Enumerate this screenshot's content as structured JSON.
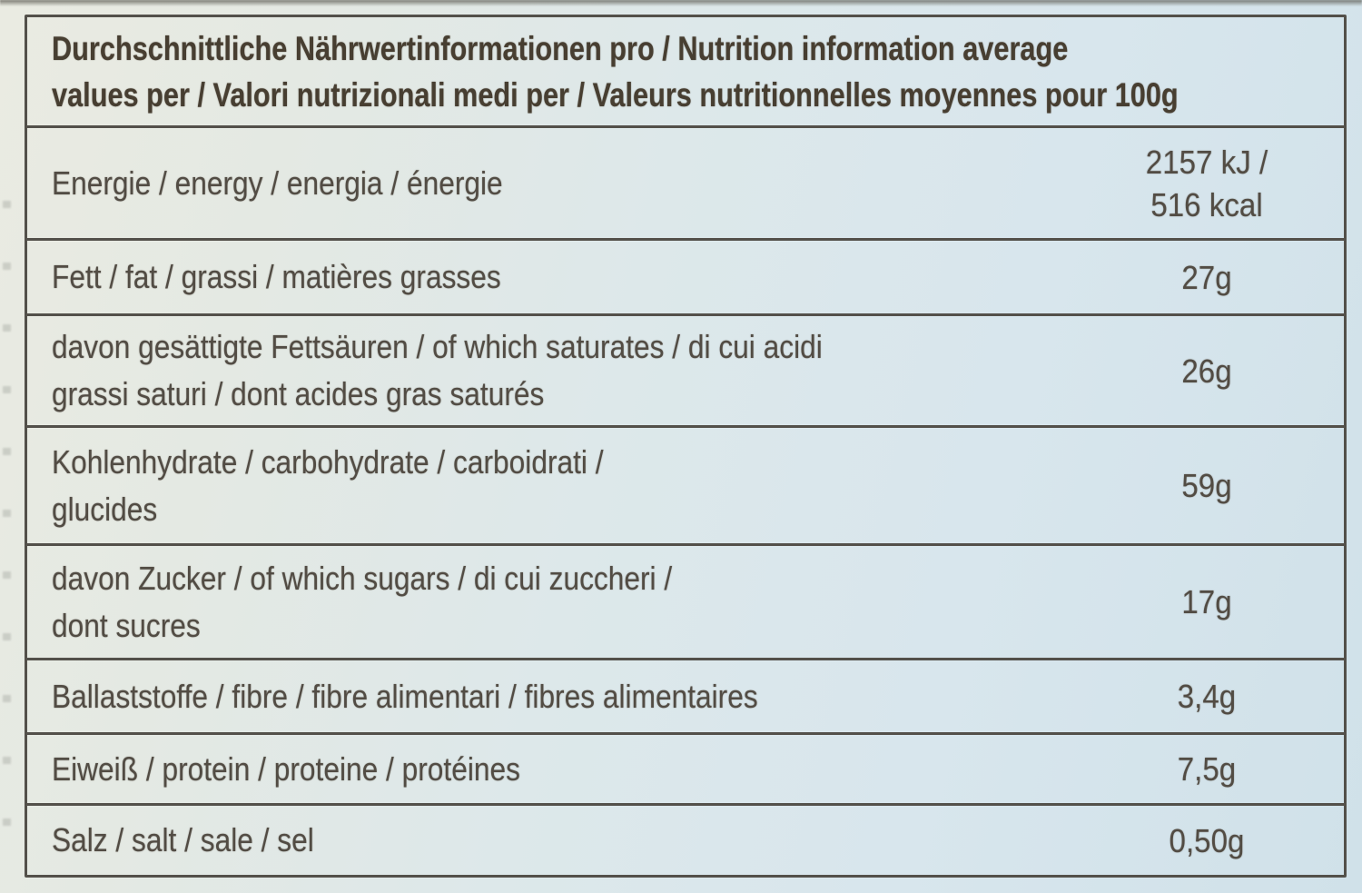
{
  "colors": {
    "background_left": "#eaebe2",
    "background_right": "#d0e1e9",
    "table_border": "#53504a",
    "header_text": "#473e31",
    "body_text": "#524c44"
  },
  "table": {
    "header_lines": [
      "Durchschnittliche Nährwertinformationen pro / Nutrition information average",
      "values per / Valori nutrizionali medi per / Valeurs nutritionnelles moyennes pour 100g"
    ],
    "rows": [
      {
        "name": "energy",
        "label_lines": [
          "Energie / energy / energia / énergie"
        ],
        "value_lines": [
          "2157 kJ /",
          "516 kcal"
        ]
      },
      {
        "name": "fat",
        "label_lines": [
          "Fett / fat / grassi / matières grasses"
        ],
        "value_lines": [
          "27g"
        ]
      },
      {
        "name": "saturates",
        "label_lines": [
          "davon gesättigte Fettsäuren / of which saturates / di cui acidi",
          "grassi saturi / dont acides gras saturés"
        ],
        "value_lines": [
          "26g"
        ]
      },
      {
        "name": "carbohydrate",
        "label_lines": [
          "Kohlenhydrate / carbohydrate / carboidrati /",
          "glucides"
        ],
        "value_lines": [
          "59g"
        ]
      },
      {
        "name": "sugars",
        "label_lines": [
          "davon Zucker / of which sugars / di cui zuccheri /",
          "dont sucres"
        ],
        "value_lines": [
          "17g"
        ]
      },
      {
        "name": "fibre",
        "label_lines": [
          "Ballaststoffe / fibre / fibre alimentari / fibres alimentaires"
        ],
        "value_lines": [
          "3,4g"
        ]
      },
      {
        "name": "protein",
        "label_lines": [
          "Eiweiß / protein / proteine / protéines"
        ],
        "value_lines": [
          "7,5g"
        ]
      },
      {
        "name": "salt",
        "label_lines": [
          "Salz / salt / sale / sel"
        ],
        "value_lines": [
          "0,50g"
        ]
      }
    ]
  }
}
